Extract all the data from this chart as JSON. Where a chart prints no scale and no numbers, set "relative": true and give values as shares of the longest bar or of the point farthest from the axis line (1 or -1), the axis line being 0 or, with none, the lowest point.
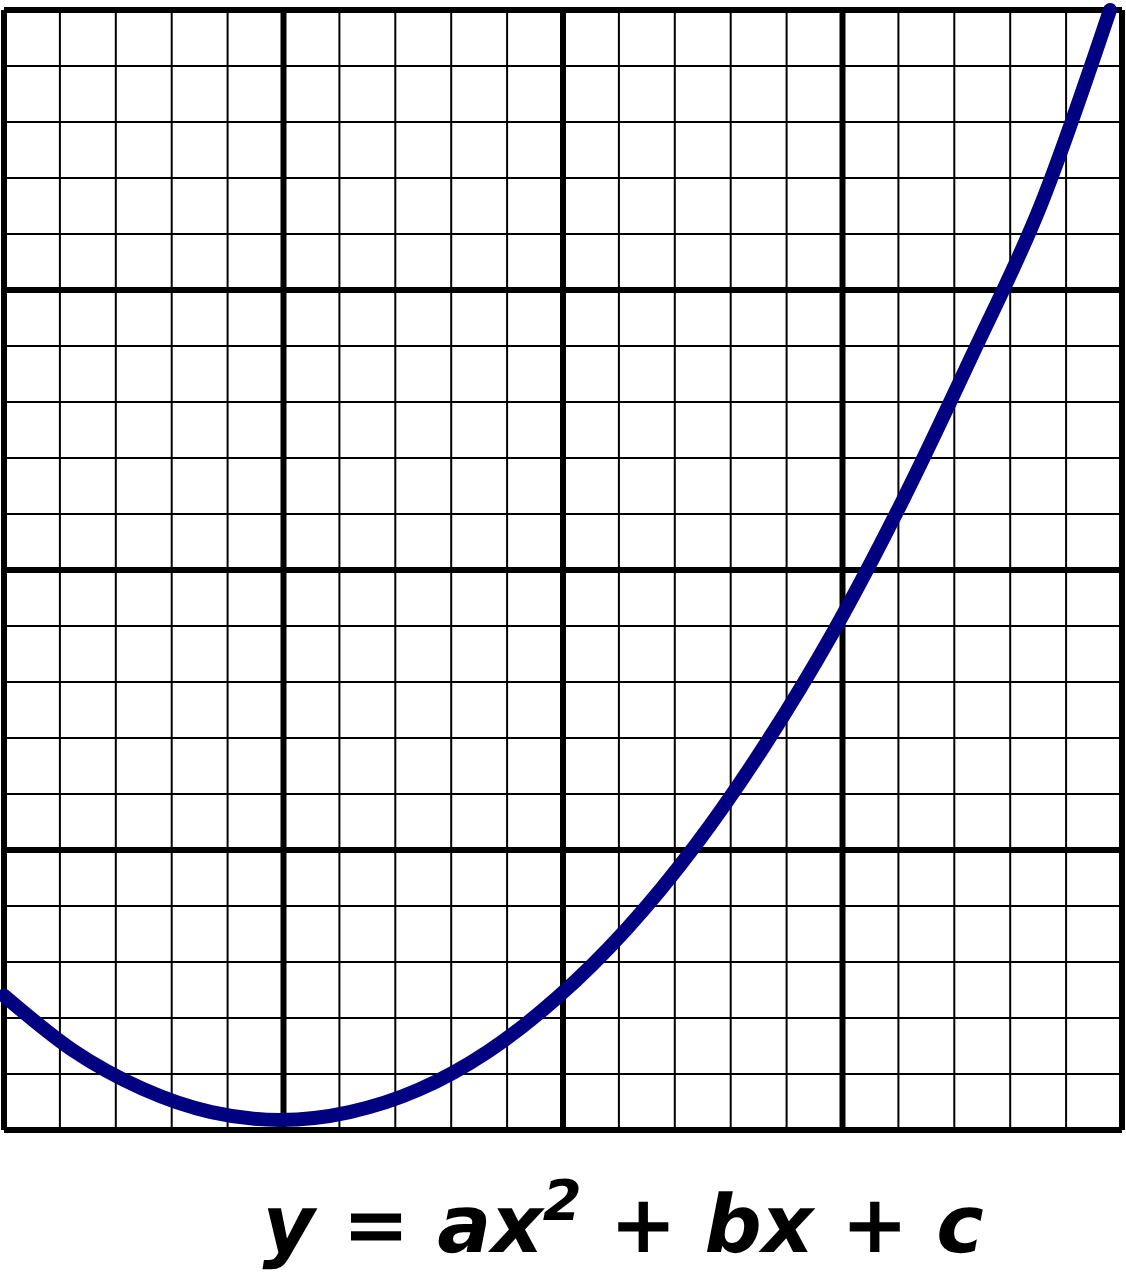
{
  "chart_data": {
    "type": "line",
    "title": "y = ax$^{2}$ + bx + c",
    "relative": true,
    "grid": true,
    "marker": "none",
    "line_style": "solid",
    "categories": [
      null,
      null,
      null,
      null,
      null,
      null,
      null,
      null,
      null,
      null,
      null,
      null,
      null,
      null,
      null,
      null,
      null
    ],
    "series": [
      {
        "color": "#000080",
        "values": [
          0.12,
          0.071,
          0.037,
          0.016,
          0.009,
          0.016,
          0.036,
          0.07,
          0.118,
          0.179,
          0.254,
          0.343,
          0.445,
          0.562,
          0.691,
          0.826,
          1
        ]
      }
    ]
  }
}
